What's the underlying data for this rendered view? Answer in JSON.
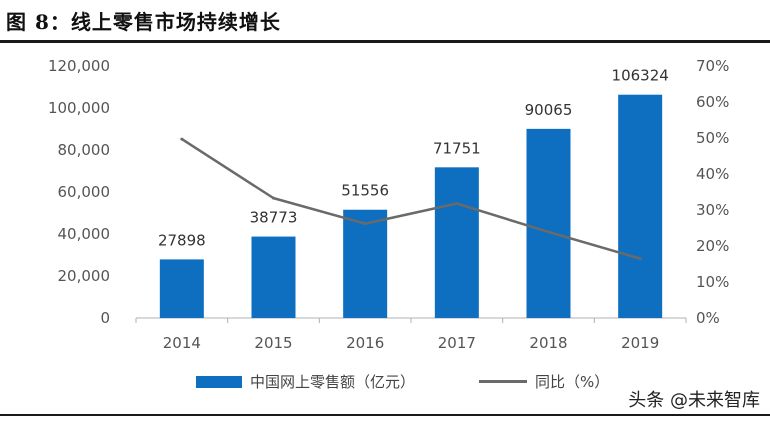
{
  "figure": {
    "title": "图 8：线上零售市场持续增长",
    "watermark": "头条 @未来智库"
  },
  "chart_data": {
    "type": "bar",
    "categories": [
      "2014",
      "2015",
      "2016",
      "2017",
      "2018",
      "2019"
    ],
    "series": [
      {
        "name": "中国网上零售额（亿元）",
        "type": "bar",
        "axis": "left",
        "values": [
          27898,
          38773,
          51556,
          71751,
          90065,
          106324
        ],
        "labels": [
          "27898",
          "38773",
          "51556",
          "71751",
          "90065",
          "106324"
        ]
      },
      {
        "name": "同比（%）",
        "type": "line",
        "axis": "right",
        "values": [
          49.7,
          33.3,
          26.2,
          31.8,
          23.9,
          16.5
        ]
      }
    ],
    "yleft": {
      "lim": [
        0,
        120000
      ],
      "ticks": [
        "0",
        "20,000",
        "40,000",
        "60,000",
        "80,000",
        "100,000",
        "120,000"
      ]
    },
    "yright": {
      "lim": [
        0,
        70
      ],
      "ticks": [
        "0%",
        "10%",
        "20%",
        "30%",
        "40%",
        "50%",
        "60%",
        "70%"
      ]
    },
    "colors": {
      "bar": "#0e6fc1",
      "line": "#6a6a6a"
    },
    "legend_position": "bottom"
  }
}
